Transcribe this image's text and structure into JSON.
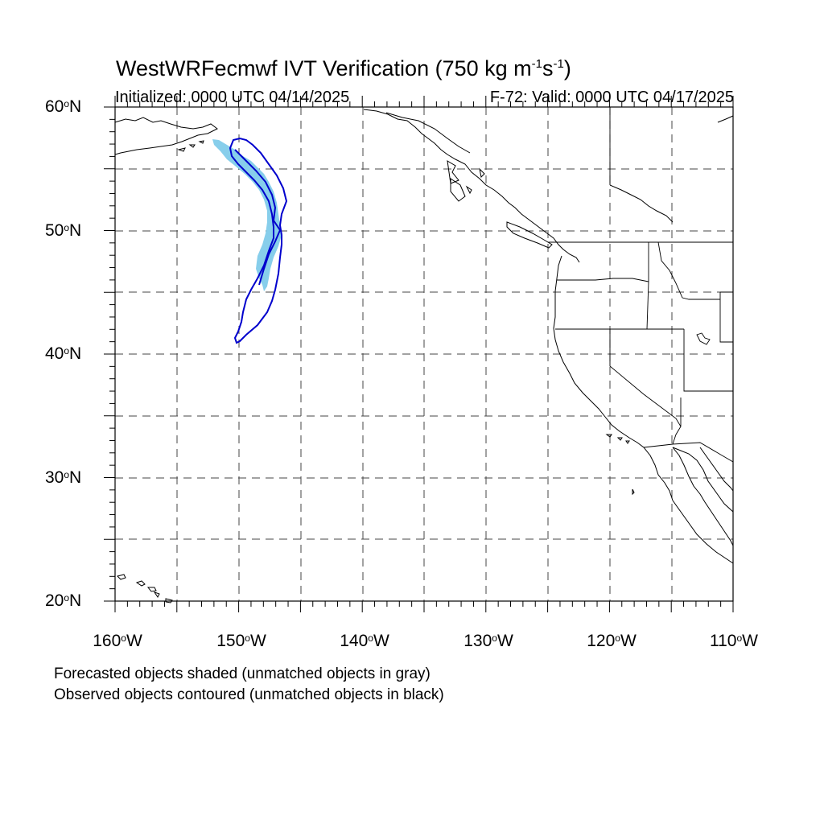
{
  "title": {
    "prefix": "WestWRFecmwf IVT Verification (750 kg m",
    "exp1": "-1",
    "mid": "s",
    "exp2": "-1",
    "suffix": ")"
  },
  "subtitle_left": "Initialized: 0000 UTC 04/14/2025",
  "subtitle_right": "F-72: Valid: 0000 UTC 04/17/2025",
  "lat_labels": [
    "60",
    "50",
    "40",
    "30",
    "20"
  ],
  "lat_suffix": "N",
  "lon_labels": [
    "160",
    "150",
    "140",
    "130",
    "120",
    "110"
  ],
  "lon_suffix": "W",
  "deg_symbol": "o",
  "footnotes": [
    "Forecasted objects shaded (unmatched objects in gray)",
    "Observed objects contoured (unmatched objects in black)"
  ],
  "colors": {
    "forecast_fill": "#87ceeb",
    "observed_contour": "#0000cd",
    "coastline": "#000000",
    "grid": "#444444"
  },
  "map": {
    "lat_range": [
      20,
      60
    ],
    "lon_range": [
      -160,
      -110
    ],
    "grid_spacing_deg": 5,
    "grid_style": "dashed"
  }
}
